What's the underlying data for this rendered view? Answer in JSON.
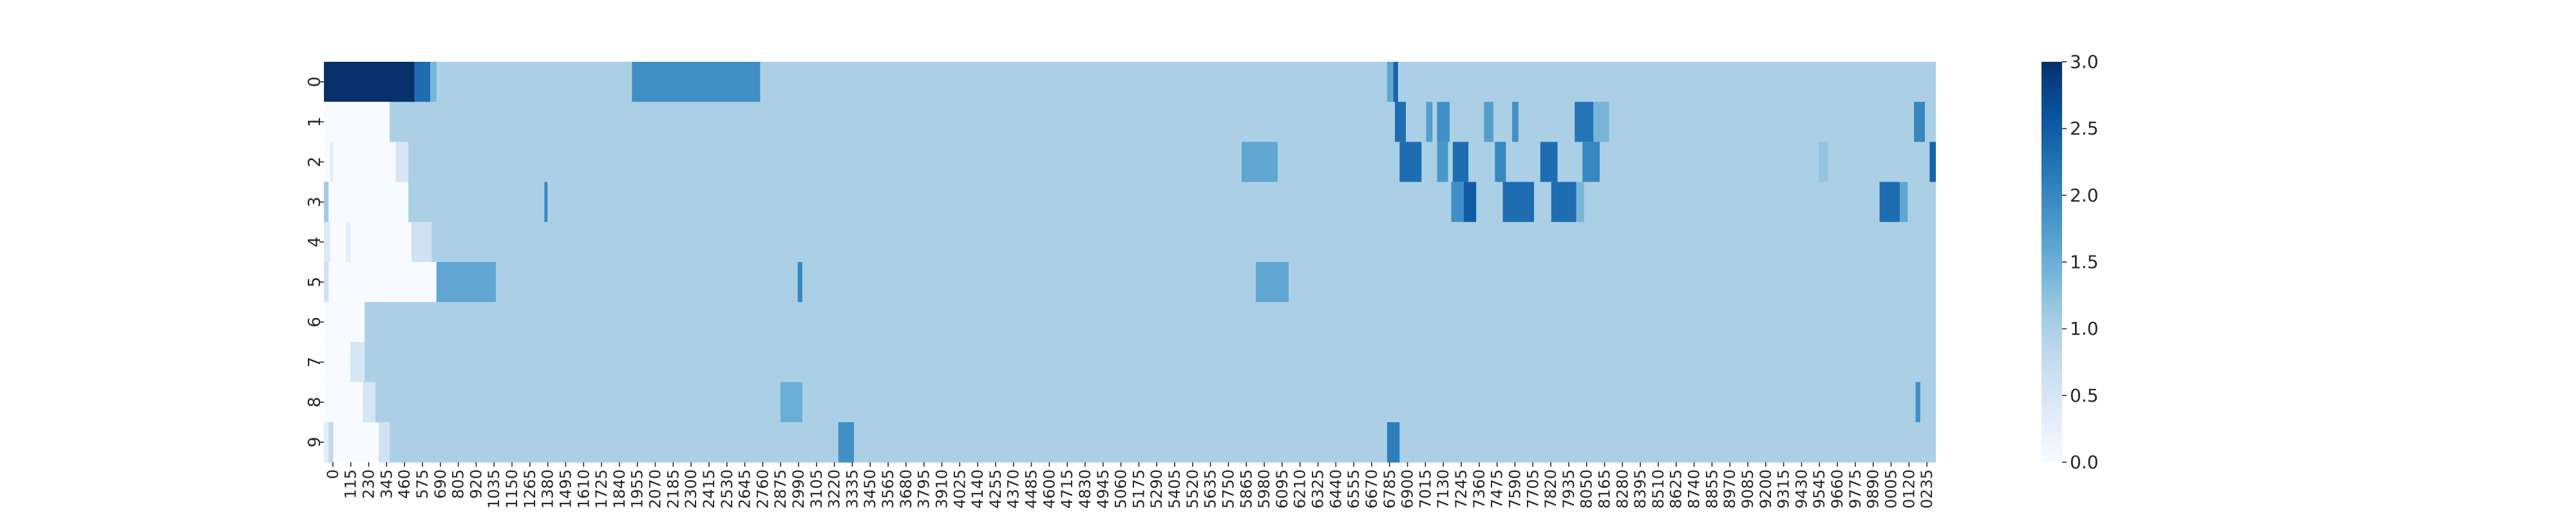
{
  "chart_data": {
    "type": "heatmap",
    "title": "",
    "xlabel": "",
    "ylabel": "",
    "rows": [
      "0",
      "1",
      "2",
      "3",
      "4",
      "5",
      "6",
      "7",
      "8",
      "9"
    ],
    "x_tick_labels": [
      "0",
      "115",
      "230",
      "345",
      "460",
      "575",
      "690",
      "805",
      "920",
      "1035",
      "1150",
      "1265",
      "1380",
      "1495",
      "1610",
      "1725",
      "1840",
      "1955",
      "2070",
      "2185",
      "2300",
      "2415",
      "2530",
      "2645",
      "2760",
      "2875",
      "2990",
      "3105",
      "3220",
      "3335",
      "3450",
      "3565",
      "3680",
      "3795",
      "3910",
      "4025",
      "4140",
      "4255",
      "4370",
      "4485",
      "4600",
      "4715",
      "4830",
      "4945",
      "5060",
      "5175",
      "5290",
      "5405",
      "5520",
      "5635",
      "5750",
      "5865",
      "5980",
      "6095",
      "6210",
      "6325",
      "6440",
      "6555",
      "6670",
      "6785",
      "6900",
      "7015",
      "7130",
      "7245",
      "7360",
      "7475",
      "7590",
      "7705",
      "7820",
      "7935",
      "8050",
      "8165",
      "8280",
      "8395",
      "8510",
      "8625",
      "8740",
      "8855",
      "8970",
      "9085",
      "9200",
      "9315",
      "9430",
      "9545",
      "9660",
      "9775",
      "9890",
      "0005",
      "0120",
      "0235"
    ],
    "column_range": [
      0,
      10310
    ],
    "colorbar": {
      "min": 0.0,
      "max": 3.0,
      "ticks": [
        "0.0",
        "0.5",
        "1.0",
        "1.5",
        "2.0",
        "2.5",
        "3.0"
      ],
      "colors": [
        "#f7fbff",
        "#deebf7",
        "#c6dbef",
        "#9ecae1",
        "#6baed6",
        "#4292c6",
        "#2171b5",
        "#08519c",
        "#08306b"
      ]
    },
    "baseline_value": 1.0,
    "segments": {
      "0": [
        [
          0,
          580,
          3.0
        ],
        [
          580,
          680,
          2.3
        ],
        [
          680,
          720,
          1.4
        ],
        [
          1970,
          2790,
          1.9
        ],
        [
          6800,
          6840,
          1.6
        ],
        [
          6840,
          6870,
          2.4
        ]
      ],
      "1": [
        [
          0,
          420,
          0.0
        ],
        [
          6850,
          6920,
          2.3
        ],
        [
          7050,
          7090,
          1.7
        ],
        [
          7120,
          7200,
          1.9
        ],
        [
          7420,
          7480,
          1.7
        ],
        [
          7600,
          7640,
          1.9
        ],
        [
          8000,
          8120,
          2.2
        ],
        [
          8120,
          8220,
          1.4
        ],
        [
          10170,
          10240,
          2.0
        ]
      ],
      "2": [
        [
          0,
          40,
          0.0
        ],
        [
          40,
          60,
          0.3
        ],
        [
          60,
          460,
          0.0
        ],
        [
          460,
          540,
          0.5
        ],
        [
          5870,
          6100,
          1.6
        ],
        [
          6880,
          7020,
          2.3
        ],
        [
          7120,
          7190,
          1.8
        ],
        [
          7220,
          7320,
          2.3
        ],
        [
          7490,
          7560,
          2.0
        ],
        [
          7780,
          7890,
          2.3
        ],
        [
          8050,
          8160,
          2.0
        ],
        [
          9560,
          9620,
          1.2
        ],
        [
          10270,
          10310,
          2.4
        ]
      ],
      "3": [
        [
          0,
          30,
          1.1
        ],
        [
          30,
          540,
          0.0
        ],
        [
          1410,
          1430,
          2.0
        ],
        [
          7210,
          7290,
          1.9
        ],
        [
          7290,
          7370,
          2.5
        ],
        [
          7540,
          7740,
          2.3
        ],
        [
          7850,
          8010,
          2.3
        ],
        [
          8010,
          8060,
          1.4
        ],
        [
          9950,
          10080,
          2.3
        ],
        [
          10080,
          10130,
          1.6
        ]
      ],
      "4": [
        [
          0,
          40,
          0.4
        ],
        [
          40,
          140,
          0.0
        ],
        [
          140,
          170,
          0.3
        ],
        [
          170,
          560,
          0.0
        ],
        [
          560,
          690,
          0.6
        ]
      ],
      "5": [
        [
          0,
          30,
          0.6
        ],
        [
          30,
          720,
          0.0
        ],
        [
          720,
          1100,
          1.6
        ],
        [
          3030,
          3060,
          2.0
        ],
        [
          5960,
          6170,
          1.6
        ]
      ],
      "6": [
        [
          0,
          260,
          0.0
        ]
      ],
      "7": [
        [
          0,
          170,
          0.0
        ],
        [
          170,
          260,
          0.5
        ]
      ],
      "8": [
        [
          0,
          250,
          0.0
        ],
        [
          250,
          330,
          0.5
        ],
        [
          2920,
          3060,
          1.5
        ],
        [
          10180,
          10210,
          1.9
        ]
      ],
      "9": [
        [
          0,
          30,
          0.3
        ],
        [
          30,
          60,
          0.8
        ],
        [
          60,
          350,
          0.0
        ],
        [
          350,
          420,
          0.6
        ],
        [
          3290,
          3390,
          1.9
        ],
        [
          6800,
          6880,
          2.1
        ]
      ]
    }
  }
}
